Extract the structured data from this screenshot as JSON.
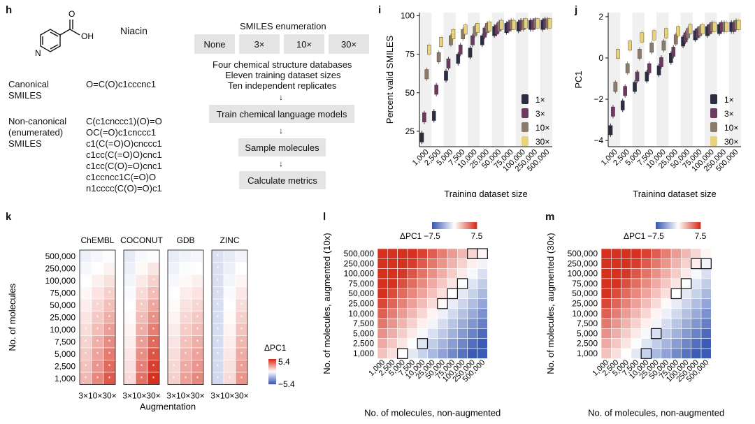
{
  "panel_h": {
    "label": "h",
    "molecule_name": "Niacin",
    "canonical_label": [
      "Canonical",
      "SMILES"
    ],
    "canonical_smiles": "O=C(O)c1cccnc1",
    "noncanonical_label": [
      "Non-canonical",
      "(enumerated)",
      "SMILES"
    ],
    "noncanonical_smiles": [
      "C(c1cnccc1)(O)=O",
      "OC(=O)c1cnccc1",
      "c1(C(=O)O)cnccc1",
      "c1cc(C(=O)O)cnc1",
      "c1cc(C(O)=O)cnc1",
      "c1ccncc1C(=O)O",
      "n1cccc(C(O)=O)c1"
    ],
    "structure_atoms": [
      "O",
      "OH",
      "N"
    ],
    "enum_title": "SMILES enumeration",
    "enum_options": [
      "None",
      "3×",
      "10×",
      "30×"
    ],
    "design_lines": [
      "Four chemical structure databases",
      "Eleven training dataset sizes",
      "Ten independent replicates"
    ],
    "steps": [
      "Train chemical language models",
      "Sample molecules",
      "Calculate metrics"
    ]
  },
  "panel_i": {
    "label": "i",
    "ylabel": "Percent valid SMILES",
    "xlabel": "Training dataset size",
    "yticks": [
      "25",
      "50",
      "75",
      "100"
    ],
    "xticks": [
      "1,000",
      "2,500",
      "5,000",
      "7,500",
      "10,000",
      "25,000",
      "50,000",
      "75,000",
      "100,000",
      "250,000",
      "500,000"
    ],
    "legend": [
      "1×",
      "3×",
      "10×",
      "30×"
    ]
  },
  "panel_j": {
    "label": "j",
    "ylabel": "PC1",
    "xlabel": "Training dataset size",
    "yticks": [
      "−4",
      "−2",
      "0",
      "2"
    ],
    "xticks": [
      "1,000",
      "2,500",
      "5,000",
      "7,500",
      "10,000",
      "25,000",
      "50,000",
      "75,000",
      "100,000",
      "250,000",
      "500,000"
    ],
    "legend": [
      "1×",
      "3×",
      "10×",
      "30×"
    ]
  },
  "panel_k": {
    "label": "k",
    "databases": [
      "ChEMBL",
      "COCONUT",
      "GDB",
      "ZINC"
    ],
    "rows": [
      "500,000",
      "250,000",
      "100,000",
      "75,000",
      "50,000",
      "25,000",
      "10,000",
      "7,500",
      "5,000",
      "2,500",
      "1,000"
    ],
    "col_labels": [
      "3×10×30×",
      "3×10×30×",
      "3×10×30×",
      "3×10×30×"
    ],
    "ylabel": "No. of molecules",
    "xlabel": "Augmentation",
    "legend_title": "ΔPC1",
    "legend_max": "5.4",
    "legend_min": "−5.4"
  },
  "panel_l": {
    "label": "l",
    "ylabel": "No. of molecules, augmented (10x)",
    "xlabel": "No. of molecules, non-augmented",
    "legend_title": "ΔPC1",
    "legend_min": "−7.5",
    "legend_max": "7.5"
  },
  "panel_m": {
    "label": "m",
    "ylabel": "No. of molecules, augmented (30x)",
    "xlabel": "No. of molecules, non-augmented",
    "legend_title": "ΔPC1",
    "legend_min": "−7.5",
    "legend_max": "7.5"
  },
  "sizes": [
    "500,000",
    "250,000",
    "100,000",
    "75,000",
    "50,000",
    "25,000",
    "10,000",
    "7,500",
    "5,000",
    "2,500",
    "1,000"
  ],
  "sizes_x": [
    "1,000",
    "2,500",
    "5,000",
    "7,500",
    "10,000",
    "25,000",
    "50,000",
    "75,000",
    "100,000",
    "250,000",
    "500,000"
  ],
  "colors": {
    "c1": "#2b2d42",
    "c3": "#6b3a5e",
    "c10": "#8c7b6b",
    "c30": "#e8d27a",
    "red": "#d7301f",
    "blue": "#3b5bb5"
  },
  "chart_data": [
    {
      "type": "box",
      "title": "Percent valid SMILES",
      "x": [
        "1,000",
        "2,500",
        "5,000",
        "7,500",
        "10,000",
        "25,000",
        "50,000",
        "75,000",
        "100,000",
        "250,000",
        "500,000"
      ],
      "ylim": [
        15,
        102
      ],
      "series": [
        {
          "name": "1×",
          "values": [
            21,
            35,
            61,
            72,
            76,
            84,
            90,
            92,
            93,
            94,
            94
          ]
        },
        {
          "name": "3×",
          "values": [
            34,
            52,
            69,
            78,
            84,
            89,
            91,
            93,
            94,
            94,
            95
          ]
        },
        {
          "name": "10×",
          "values": [
            62,
            73,
            84,
            88,
            90,
            92,
            93,
            94,
            94,
            95,
            95
          ]
        },
        {
          "name": "30×",
          "values": [
            78,
            83,
            88,
            91,
            92,
            93,
            94,
            94,
            95,
            95,
            95
          ]
        }
      ]
    },
    {
      "type": "box",
      "title": "PC1",
      "x": [
        "1,000",
        "2,500",
        "5,000",
        "7,500",
        "10,000",
        "25,000",
        "50,000",
        "75,000",
        "100,000",
        "250,000",
        "500,000"
      ],
      "ylim": [
        -4.3,
        2.2
      ],
      "series": [
        {
          "name": "1×",
          "values": [
            -3.5,
            -2.3,
            -1.4,
            -0.9,
            -0.6,
            0.0,
            0.8,
            1.1,
            1.3,
            1.4,
            1.5
          ]
        },
        {
          "name": "3×",
          "values": [
            -2.6,
            -1.6,
            -0.9,
            -0.5,
            -0.2,
            0.3,
            1.0,
            1.2,
            1.4,
            1.5,
            1.5
          ]
        },
        {
          "name": "10×",
          "values": [
            -1.4,
            -0.5,
            0.2,
            0.5,
            0.6,
            0.9,
            1.2,
            1.3,
            1.5,
            1.5,
            1.6
          ]
        },
        {
          "name": "30×",
          "values": [
            0.2,
            0.6,
            1.0,
            1.1,
            1.2,
            1.3,
            1.4,
            1.4,
            1.5,
            1.5,
            1.6
          ]
        }
      ]
    }
  ]
}
